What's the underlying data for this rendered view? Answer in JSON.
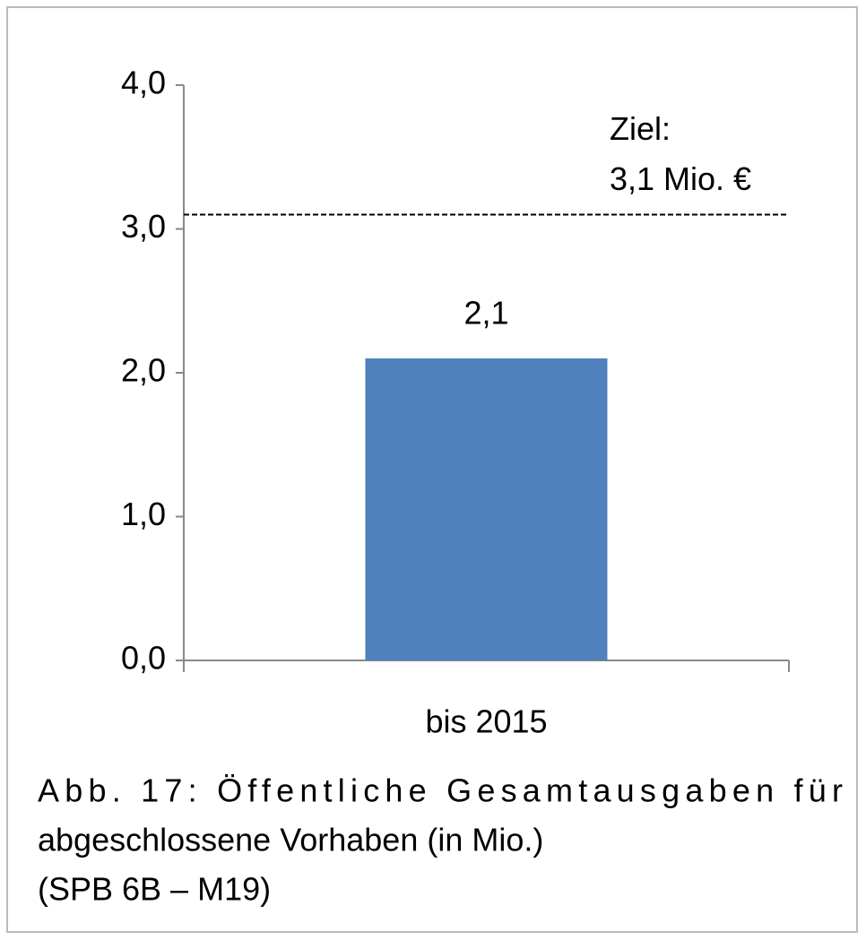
{
  "chart_data": {
    "type": "bar",
    "categories": [
      "bis 2015"
    ],
    "values": [
      2.1
    ],
    "value_labels": [
      "2,1"
    ],
    "color": "#4f81bd",
    "ylim": [
      0,
      4
    ],
    "yticks": [
      {
        "value": 0,
        "label": "0,0"
      },
      {
        "value": 1,
        "label": "1,0"
      },
      {
        "value": 2,
        "label": "2,0"
      },
      {
        "value": 3,
        "label": "3,0"
      },
      {
        "value": 4,
        "label": "4,0"
      }
    ],
    "target": {
      "value": 3.1,
      "label_lines": [
        "Ziel:",
        "3,1 Mio. €"
      ]
    },
    "caption": [
      "Abb. 17: Öffentliche Gesamtausgaben für",
      "abgeschlossene Vorhaben (in Mio.)",
      "(SPB 6B – M19)"
    ]
  }
}
